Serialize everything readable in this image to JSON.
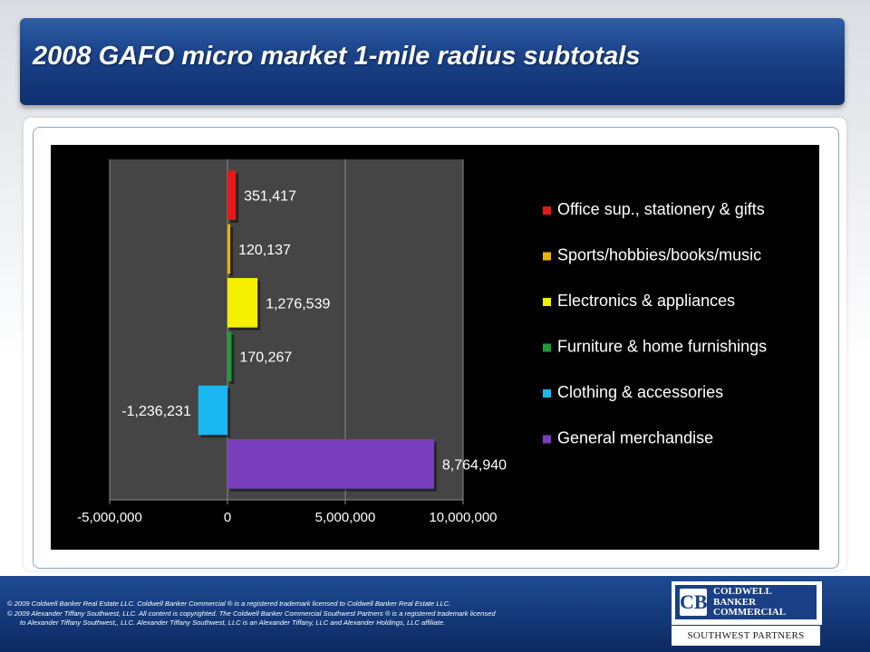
{
  "slide": {
    "title": "2008 GAFO micro market 1-mile radius subtotals"
  },
  "chart_data": {
    "type": "bar",
    "orientation": "horizontal",
    "categories": [
      "General merchandise",
      "Clothing & accessories",
      "Furniture & home furnishings",
      "Electronics & appliances",
      "Sports/hobbies/books/music",
      "Office sup., stationery & gifts"
    ],
    "values": [
      8764940,
      -1236231,
      170267,
      1276539,
      120137,
      351417
    ],
    "data_labels": [
      "8,764,940",
      "-1,236,231",
      "170,267",
      "1,276,539",
      "120,137",
      "351,417"
    ],
    "colors": [
      "#7a3fbf",
      "#19b8f0",
      "#1e9e3a",
      "#f5f000",
      "#e8b400",
      "#e81818"
    ],
    "legend": [
      "Office sup., stationery & gifts",
      "Sports/hobbies/books/music",
      "Electronics & appliances",
      "Furniture & home furnishings",
      "Clothing & accessories",
      "General merchandise"
    ],
    "legend_colors": [
      "#e81818",
      "#e8b400",
      "#f5f000",
      "#1e9e3a",
      "#19b8f0",
      "#7a3fbf"
    ],
    "legend_position": "right",
    "x_ticks": [
      -5000000,
      0,
      5000000,
      10000000
    ],
    "x_tick_labels": [
      "-5,000,000",
      "0",
      "5,000,000",
      "10,000,000"
    ],
    "xlim": [
      -5000000,
      10000000
    ],
    "grid": true,
    "title": "",
    "xlabel": "",
    "ylabel": ""
  },
  "footer": {
    "line1": "© 2009 Coldwell Banker Real Estate LLC. Coldwell Banker Commercial ® is a registered trademark licensed to Coldwell Banker Real Estate LLC.",
    "line2": "© 2009 Alexander Tiffany Southwest, LLC. All content is copyrighted. The Coldwell Banker Commercial Southwest Partners ® is a registered trademark licensed",
    "line3": "to Alexander Tiffany Southwest,, LLC.  Alexander Tiffany Southwest, LLC is an Alexander Tiffany, LLC and Alexander Holdings, LLC affiliate."
  },
  "logo": {
    "line1": "COLDWELL",
    "line2": "BANKER",
    "line3": "COMMERCIAL",
    "subtitle": "SOUTHWEST PARTNERS",
    "mark": "CB"
  }
}
